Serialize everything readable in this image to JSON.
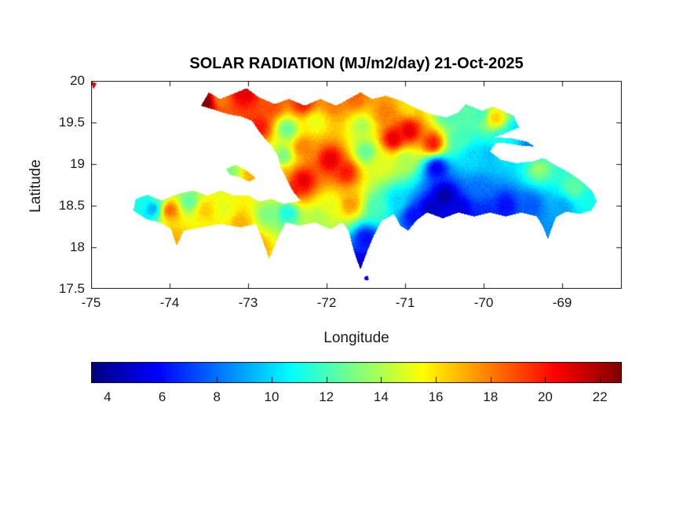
{
  "figure": {
    "background_color": "#ffffff"
  },
  "axes": {
    "tick_color": "#1a1a1a",
    "box_color": "#151515"
  },
  "colorbar": {
    "orientation": "horizontal",
    "colormap": "jet",
    "min": 3.4,
    "max": 22.8,
    "ticks": [
      4,
      6,
      8,
      10,
      12,
      14,
      16,
      18,
      20,
      22
    ]
  },
  "chart_data": {
    "type": "heatmap",
    "title": "SOLAR RADIATION (MJ/m2/day) 21-Oct-2025",
    "units": "MJ/m2/day",
    "date": "21-Oct-2025",
    "region": "Hispaniola (Haiti / Dominican Republic)",
    "xlabel": "Longitude",
    "ylabel": "Latitude",
    "xlim": [
      -75,
      -68.24
    ],
    "ylim": [
      17.5,
      20
    ],
    "x_ticks": [
      -75,
      -74,
      -73,
      -72,
      -71,
      -70,
      -69
    ],
    "y_ticks": [
      20,
      19.5,
      19,
      18.5,
      18,
      17.5
    ],
    "value_range": [
      3.4,
      22.8
    ],
    "colormap": "jet",
    "grid": false,
    "samples": [
      [
        -73.55,
        19.75,
        23.0
      ],
      [
        -73.35,
        19.78,
        18.0
      ],
      [
        -73.05,
        19.86,
        21.0
      ],
      [
        -72.7,
        19.7,
        19.0
      ],
      [
        -72.3,
        19.73,
        20.0
      ],
      [
        -71.9,
        19.72,
        18.0
      ],
      [
        -71.65,
        19.8,
        18.5
      ],
      [
        -71.25,
        19.62,
        18.0
      ],
      [
        -70.95,
        19.7,
        16.0
      ],
      [
        -70.45,
        19.6,
        12.0
      ],
      [
        -70.05,
        19.6,
        12.0
      ],
      [
        -69.85,
        19.55,
        16.5
      ],
      [
        -69.55,
        19.4,
        10.0
      ],
      [
        -72.85,
        19.45,
        20.0
      ],
      [
        -72.5,
        19.42,
        12.5
      ],
      [
        -72.15,
        19.5,
        15.0
      ],
      [
        -71.55,
        19.45,
        14.0
      ],
      [
        -71.15,
        19.3,
        21.0
      ],
      [
        -70.95,
        19.4,
        21.0
      ],
      [
        -70.65,
        19.25,
        20.0
      ],
      [
        -70.3,
        19.3,
        12.0
      ],
      [
        -70.15,
        19.1,
        10.0
      ],
      [
        -72.55,
        19.1,
        13.0
      ],
      [
        -72.3,
        19.2,
        18.0
      ],
      [
        -71.95,
        19.05,
        21.0
      ],
      [
        -71.5,
        19.15,
        12.5
      ],
      [
        -71.75,
        18.9,
        20.0
      ],
      [
        -72.3,
        18.8,
        21.0
      ],
      [
        -72.6,
        18.85,
        17.0
      ],
      [
        -71.3,
        19.0,
        15.0
      ],
      [
        -71.0,
        19.05,
        14.0
      ],
      [
        -70.6,
        18.95,
        5.5
      ],
      [
        -70.5,
        18.62,
        4.0
      ],
      [
        -70.68,
        18.45,
        4.5
      ],
      [
        -70.3,
        18.45,
        5.0
      ],
      [
        -70.05,
        18.7,
        8.0
      ],
      [
        -69.95,
        19.1,
        9.5
      ],
      [
        -69.75,
        19.3,
        11.0
      ],
      [
        -69.42,
        19.24,
        8.0
      ],
      [
        -69.35,
        19.15,
        10.5
      ],
      [
        -69.3,
        18.95,
        13.5
      ],
      [
        -68.85,
        18.72,
        12.5
      ],
      [
        -68.65,
        18.55,
        11.0
      ],
      [
        -69.0,
        18.48,
        9.0
      ],
      [
        -69.4,
        18.5,
        7.5
      ],
      [
        -69.72,
        18.5,
        6.0
      ],
      [
        -69.18,
        18.15,
        8.5
      ],
      [
        -70.0,
        18.42,
        6.5
      ],
      [
        -70.9,
        18.38,
        6.0
      ],
      [
        -71.1,
        18.55,
        10.0
      ],
      [
        -71.35,
        18.48,
        12.0
      ],
      [
        -71.7,
        18.52,
        17.5
      ],
      [
        -71.95,
        18.5,
        15.0
      ],
      [
        -71.5,
        18.1,
        6.0
      ],
      [
        -71.6,
        17.78,
        4.5
      ],
      [
        -72.1,
        18.35,
        14.0
      ],
      [
        -72.5,
        18.42,
        11.0
      ],
      [
        -72.4,
        18.72,
        20.0
      ],
      [
        -72.91,
        18.0,
        17.5
      ],
      [
        -72.75,
        18.4,
        13.0
      ],
      [
        -73.1,
        18.3,
        17.0
      ],
      [
        -73.3,
        18.45,
        15.0
      ],
      [
        -73.55,
        18.45,
        16.5
      ],
      [
        -73.93,
        18.1,
        17.0
      ],
      [
        -74.0,
        18.45,
        18.5
      ],
      [
        -73.75,
        18.55,
        12.5
      ],
      [
        -74.35,
        18.52,
        11.0
      ],
      [
        -74.22,
        18.47,
        9.0
      ],
      [
        -74.15,
        18.62,
        12.5
      ],
      [
        -73.25,
        18.9,
        13.0
      ],
      [
        -72.95,
        18.85,
        17.0
      ],
      [
        -74.97,
        19.96,
        21.0
      ]
    ],
    "outlines": {
      "hispaniola": [
        [
          -73.6,
          19.7
        ],
        [
          -73.5,
          19.86
        ],
        [
          -73.36,
          19.78
        ],
        [
          -73.2,
          19.84
        ],
        [
          -73.02,
          19.91
        ],
        [
          -72.86,
          19.8
        ],
        [
          -72.66,
          19.72
        ],
        [
          -72.48,
          19.78
        ],
        [
          -72.28,
          19.7
        ],
        [
          -72.08,
          19.78
        ],
        [
          -71.88,
          19.7
        ],
        [
          -71.72,
          19.78
        ],
        [
          -71.57,
          19.86
        ],
        [
          -71.42,
          19.78
        ],
        [
          -71.25,
          19.82
        ],
        [
          -71.05,
          19.76
        ],
        [
          -70.88,
          19.68
        ],
        [
          -70.68,
          19.6
        ],
        [
          -70.48,
          19.56
        ],
        [
          -70.32,
          19.62
        ],
        [
          -70.23,
          19.72
        ],
        [
          -70.02,
          19.64
        ],
        [
          -69.88,
          19.69
        ],
        [
          -69.62,
          19.58
        ],
        [
          -69.55,
          19.44
        ],
        [
          -69.75,
          19.36
        ],
        [
          -69.88,
          19.32
        ],
        [
          -69.65,
          19.31
        ],
        [
          -69.45,
          19.27
        ],
        [
          -69.35,
          19.21
        ],
        [
          -69.5,
          19.22
        ],
        [
          -69.7,
          19.25
        ],
        [
          -69.84,
          19.26
        ],
        [
          -69.92,
          19.15
        ],
        [
          -69.78,
          19.05
        ],
        [
          -69.58,
          19.01
        ],
        [
          -69.38,
          19.03
        ],
        [
          -69.24,
          19.07
        ],
        [
          -69.08,
          18.98
        ],
        [
          -68.92,
          18.9
        ],
        [
          -68.76,
          18.8
        ],
        [
          -68.62,
          18.68
        ],
        [
          -68.56,
          18.55
        ],
        [
          -68.63,
          18.44
        ],
        [
          -68.78,
          18.4
        ],
        [
          -68.95,
          18.43
        ],
        [
          -69.08,
          18.36
        ],
        [
          -69.13,
          18.24
        ],
        [
          -69.18,
          18.1
        ],
        [
          -69.24,
          18.24
        ],
        [
          -69.32,
          18.37
        ],
        [
          -69.52,
          18.42
        ],
        [
          -69.72,
          18.37
        ],
        [
          -69.92,
          18.42
        ],
        [
          -70.12,
          18.37
        ],
        [
          -70.32,
          18.42
        ],
        [
          -70.52,
          18.35
        ],
        [
          -70.72,
          18.42
        ],
        [
          -70.86,
          18.32
        ],
        [
          -70.96,
          18.2
        ],
        [
          -71.06,
          18.26
        ],
        [
          -71.14,
          18.4
        ],
        [
          -71.3,
          18.32
        ],
        [
          -71.4,
          18.14
        ],
        [
          -71.48,
          17.96
        ],
        [
          -71.57,
          17.73
        ],
        [
          -71.66,
          17.98
        ],
        [
          -71.72,
          18.2
        ],
        [
          -71.8,
          18.3
        ],
        [
          -71.95,
          18.22
        ],
        [
          -72.15,
          18.3
        ],
        [
          -72.35,
          18.26
        ],
        [
          -72.52,
          18.3
        ],
        [
          -72.62,
          18.12
        ],
        [
          -72.73,
          17.86
        ],
        [
          -72.82,
          18.1
        ],
        [
          -72.9,
          18.28
        ],
        [
          -73.1,
          18.24
        ],
        [
          -73.35,
          18.28
        ],
        [
          -73.6,
          18.24
        ],
        [
          -73.82,
          18.2
        ],
        [
          -73.91,
          18.02
        ],
        [
          -73.98,
          18.22
        ],
        [
          -74.12,
          18.3
        ],
        [
          -74.3,
          18.34
        ],
        [
          -74.46,
          18.44
        ],
        [
          -74.43,
          18.58
        ],
        [
          -74.28,
          18.63
        ],
        [
          -74.1,
          18.56
        ],
        [
          -73.9,
          18.64
        ],
        [
          -73.7,
          18.68
        ],
        [
          -73.52,
          18.62
        ],
        [
          -73.35,
          18.68
        ],
        [
          -73.18,
          18.62
        ],
        [
          -73.0,
          18.62
        ],
        [
          -72.86,
          18.55
        ],
        [
          -72.7,
          18.58
        ],
        [
          -72.55,
          18.52
        ],
        [
          -72.33,
          18.56
        ],
        [
          -72.42,
          18.66
        ],
        [
          -72.5,
          18.8
        ],
        [
          -72.58,
          18.95
        ],
        [
          -72.62,
          19.1
        ],
        [
          -72.7,
          19.22
        ],
        [
          -72.8,
          19.32
        ],
        [
          -72.88,
          19.42
        ],
        [
          -72.95,
          19.52
        ],
        [
          -73.08,
          19.57
        ],
        [
          -73.25,
          19.6
        ],
        [
          -73.42,
          19.65
        ]
      ],
      "gonave": [
        [
          -73.28,
          18.94
        ],
        [
          -73.16,
          18.99
        ],
        [
          -73.03,
          18.93
        ],
        [
          -72.9,
          18.83
        ],
        [
          -72.99,
          18.79
        ],
        [
          -73.12,
          18.85
        ],
        [
          -73.23,
          18.87
        ]
      ],
      "south_islet": [
        [
          -71.52,
          17.64
        ],
        [
          -71.48,
          17.66
        ],
        [
          -71.46,
          17.61
        ],
        [
          -71.51,
          17.6
        ]
      ],
      "corner_speck": [
        [
          -75.0,
          19.99
        ],
        [
          -74.93,
          19.97
        ],
        [
          -74.97,
          19.9
        ]
      ]
    }
  }
}
